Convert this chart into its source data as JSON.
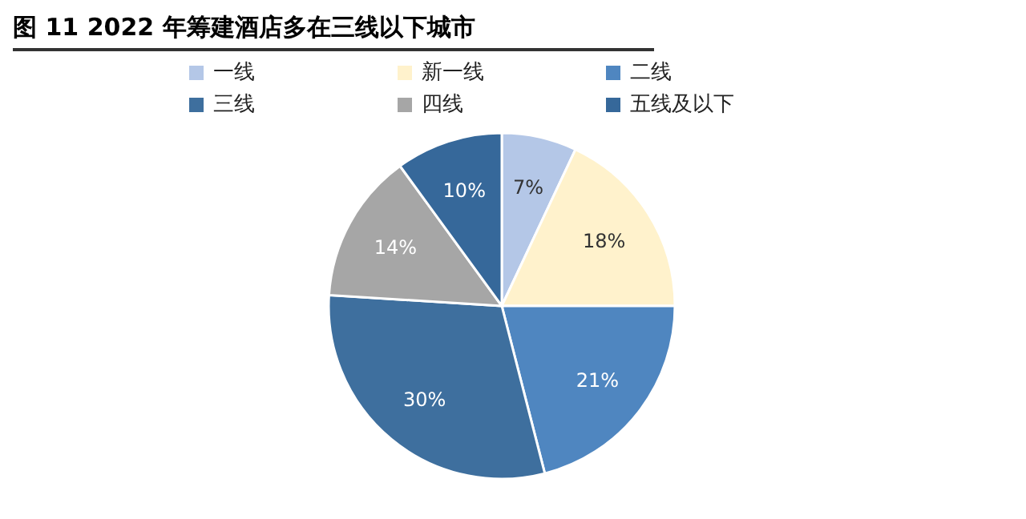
{
  "chart_data": {
    "type": "pie",
    "title": "图 11 2022 年筹建酒店多在三线以下城市",
    "categories": [
      "一线",
      "新一线",
      "二线",
      "三线",
      "四线",
      "五线及以下"
    ],
    "values": [
      7,
      18,
      21,
      30,
      14,
      10
    ],
    "value_labels": [
      "7%",
      "18%",
      "21%",
      "30%",
      "14%",
      "10%"
    ],
    "colors": [
      "#b4c7e7",
      "#fff2cc",
      "#4f86c0",
      "#3e6f9e",
      "#a6a6a6",
      "#36689a"
    ],
    "legend": "top"
  }
}
